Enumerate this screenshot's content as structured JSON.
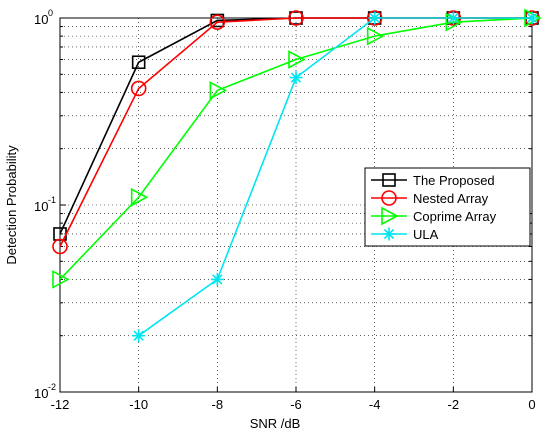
{
  "chart_data": {
    "type": "line",
    "x_label": "SNR  /dB",
    "y_label": "Detection Probability",
    "x": [
      -12,
      -10,
      -8,
      -6,
      -4,
      -2,
      0
    ],
    "series": [
      {
        "name": "The Proposed",
        "color": "#000000",
        "marker": "square",
        "values": [
          0.07,
          0.58,
          0.97,
          1,
          1,
          1,
          1
        ]
      },
      {
        "name": "Nested Array",
        "color": "#ff0000",
        "marker": "circle",
        "values": [
          0.06,
          0.42,
          0.95,
          1,
          1,
          1,
          1
        ]
      },
      {
        "name": "Coprime Array",
        "color": "#00ff00",
        "marker": "triangle-right",
        "values": [
          0.04,
          0.11,
          0.41,
          0.6,
          0.8,
          0.95,
          1
        ]
      },
      {
        "name": "ULA",
        "color": "#00e5ee",
        "marker": "asterisk",
        "values": [
          null,
          0.02,
          0.04,
          0.48,
          1,
          1,
          1
        ]
      }
    ],
    "xlim": [
      -12,
      0
    ],
    "xticks": [
      -12,
      -10,
      -8,
      -6,
      -4,
      -2,
      0
    ],
    "ylim": [
      0.01,
      1
    ],
    "yticks": [
      {
        "value": 0.01,
        "label": "10",
        "exponent": "-2"
      },
      {
        "value": 0.1,
        "label": "10",
        "exponent": "-1"
      },
      {
        "value": 1,
        "label": "10",
        "exponent": "0"
      }
    ],
    "y_scale": "log",
    "grid": true,
    "minor_grid": true,
    "legend_loc": "right"
  }
}
